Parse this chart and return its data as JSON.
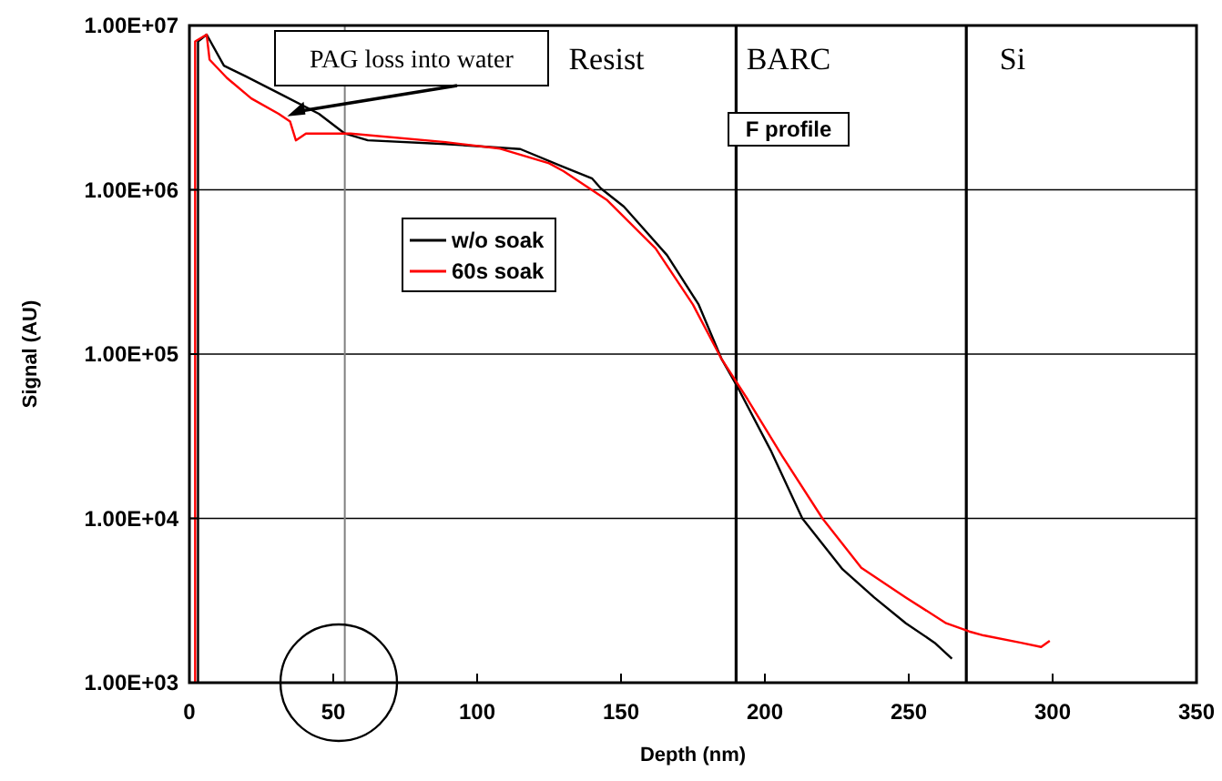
{
  "chart_data": {
    "type": "line",
    "xlabel": "Depth (nm)",
    "ylabel": "Signal (AU)",
    "log": "y",
    "xlim": [
      0,
      350
    ],
    "xticks": [
      0,
      50,
      100,
      150,
      200,
      250,
      300,
      350
    ],
    "ylim": [
      1000,
      10000000
    ],
    "yticks": [
      {
        "value": 1000,
        "label": "1.00E+03"
      },
      {
        "value": 10000,
        "label": "1.00E+04"
      },
      {
        "value": 100000,
        "label": "1.00E+05"
      },
      {
        "value": 1000000,
        "label": "1.00E+06"
      },
      {
        "value": 10000000,
        "label": "1.00E+07"
      }
    ],
    "grid": "y",
    "legend": "center left",
    "line_style": "solid",
    "marker": "none",
    "series": [
      {
        "name": "w/o soak",
        "color": "#000000",
        "x": [
          3,
          3,
          6,
          12,
          19.6,
          32,
          45,
          54,
          62,
          89,
          115,
          129,
          140,
          143,
          151,
          166,
          177,
          185,
          190.5,
          202,
          213,
          227,
          238,
          249,
          259,
          265
        ],
        "values": [
          1000,
          8000000,
          8800000,
          5700000,
          4900000,
          3800000,
          2900000,
          2200000,
          2000000,
          1900000,
          1770000,
          1400000,
          1170000,
          1020000,
          790000,
          400000,
          200000,
          93000,
          63000,
          26000,
          10000,
          4900,
          3300,
          2300,
          1750,
          1400
        ]
      },
      {
        "name": "60s soak",
        "color": "#ff0000",
        "x": [
          2,
          2,
          6,
          7,
          13,
          21.5,
          31,
          35,
          37,
          40.5,
          56,
          89,
          108,
          125,
          130,
          145,
          162,
          175,
          185,
          194,
          206,
          220,
          233.5,
          249,
          263,
          271,
          276,
          289,
          296,
          299
        ],
        "values": [
          1000,
          8000000,
          8800000,
          6200000,
          4800000,
          3600000,
          2900000,
          2600000,
          2000000,
          2200000,
          2200000,
          1950000,
          1780000,
          1450000,
          1300000,
          870000,
          440000,
          200000,
          93000,
          53000,
          24000,
          10000,
          5000,
          3300,
          2300,
          2050,
          1940,
          1750,
          1650,
          1800
        ]
      }
    ],
    "ref_lines": [
      {
        "axis": "x",
        "value": 54,
        "color": "#808080"
      },
      {
        "axis": "x",
        "value": 190,
        "color": "#000000"
      },
      {
        "axis": "x",
        "value": 270,
        "color": "#000000"
      }
    ],
    "annotations": [
      {
        "text": "PAG loss into water",
        "x": 34,
        "y": 2800000
      },
      "Resist",
      "BARC",
      "Si",
      "F profile"
    ]
  }
}
